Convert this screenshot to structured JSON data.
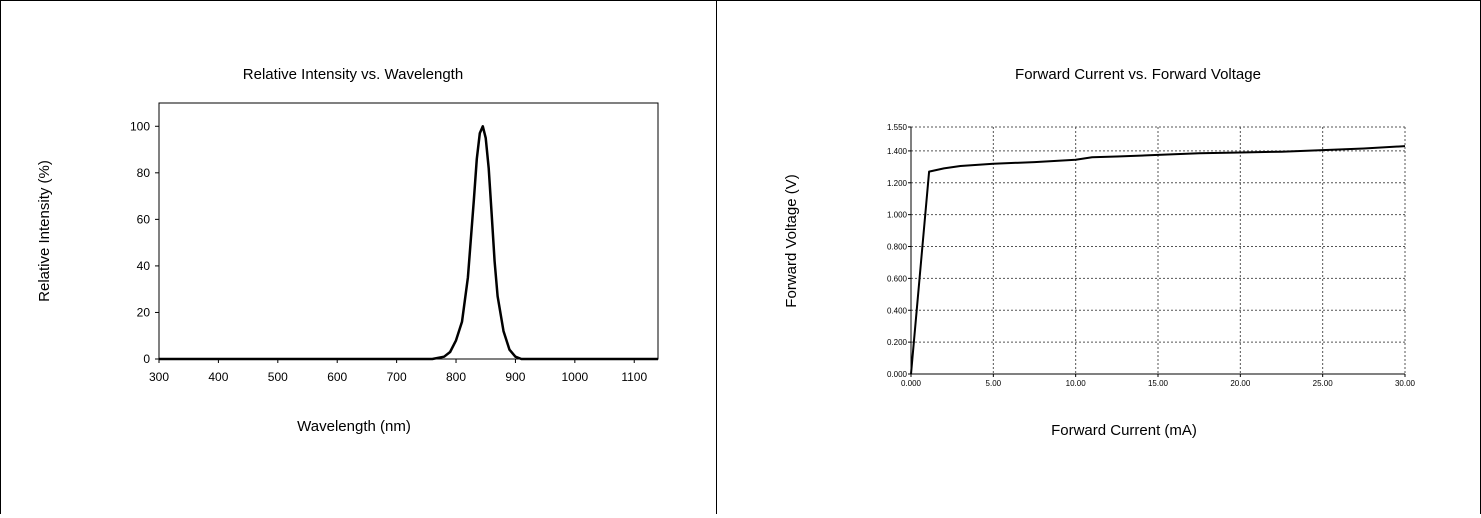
{
  "chart_data": [
    {
      "type": "line",
      "title": "Relative Intensity vs. Wavelength",
      "xlabel": "Wavelength (nm)",
      "ylabel": "Relative Intensity (%)",
      "xlim": [
        300,
        1140
      ],
      "ylim": [
        0,
        110
      ],
      "xticks": [
        300,
        400,
        500,
        600,
        700,
        800,
        900,
        1000,
        1100
      ],
      "yticks": [
        0,
        20,
        40,
        60,
        80,
        100
      ],
      "grid": false,
      "series": [
        {
          "x": [
            300,
            760,
            780,
            790,
            800,
            810,
            820,
            830,
            835,
            840,
            845,
            850,
            855,
            860,
            865,
            870,
            880,
            890,
            900,
            910,
            1140
          ],
          "y": [
            0,
            0,
            1,
            3,
            8,
            16,
            35,
            68,
            86,
            97,
            100,
            95,
            82,
            62,
            42,
            27,
            12,
            4,
            1,
            0,
            0
          ]
        }
      ]
    },
    {
      "type": "line",
      "title": "Forward Current vs. Forward Voltage",
      "xlabel": "Forward Current (mA)",
      "ylabel": "Forward Voltage (V)",
      "xlim": [
        0,
        30
      ],
      "ylim": [
        0,
        1.55
      ],
      "xticks": [
        "0.000",
        "5.00",
        "10.00",
        "15.00",
        "20.00",
        "25.00",
        "30.00"
      ],
      "yticks": [
        "0.000",
        "0.200",
        "0.400",
        "0.600",
        "0.800",
        "1.000",
        "1.200",
        "1.400"
      ],
      "yticks_top": "1.550",
      "grid": true,
      "series": [
        {
          "x": [
            0,
            1.1,
            2,
            3,
            5,
            7.5,
            10,
            11,
            12.5,
            15,
            17.5,
            20,
            22.5,
            25,
            27.5,
            30
          ],
          "y": [
            0,
            1.27,
            1.29,
            1.305,
            1.32,
            1.33,
            1.345,
            1.36,
            1.365,
            1.375,
            1.385,
            1.39,
            1.395,
            1.405,
            1.415,
            1.43
          ]
        }
      ]
    }
  ]
}
